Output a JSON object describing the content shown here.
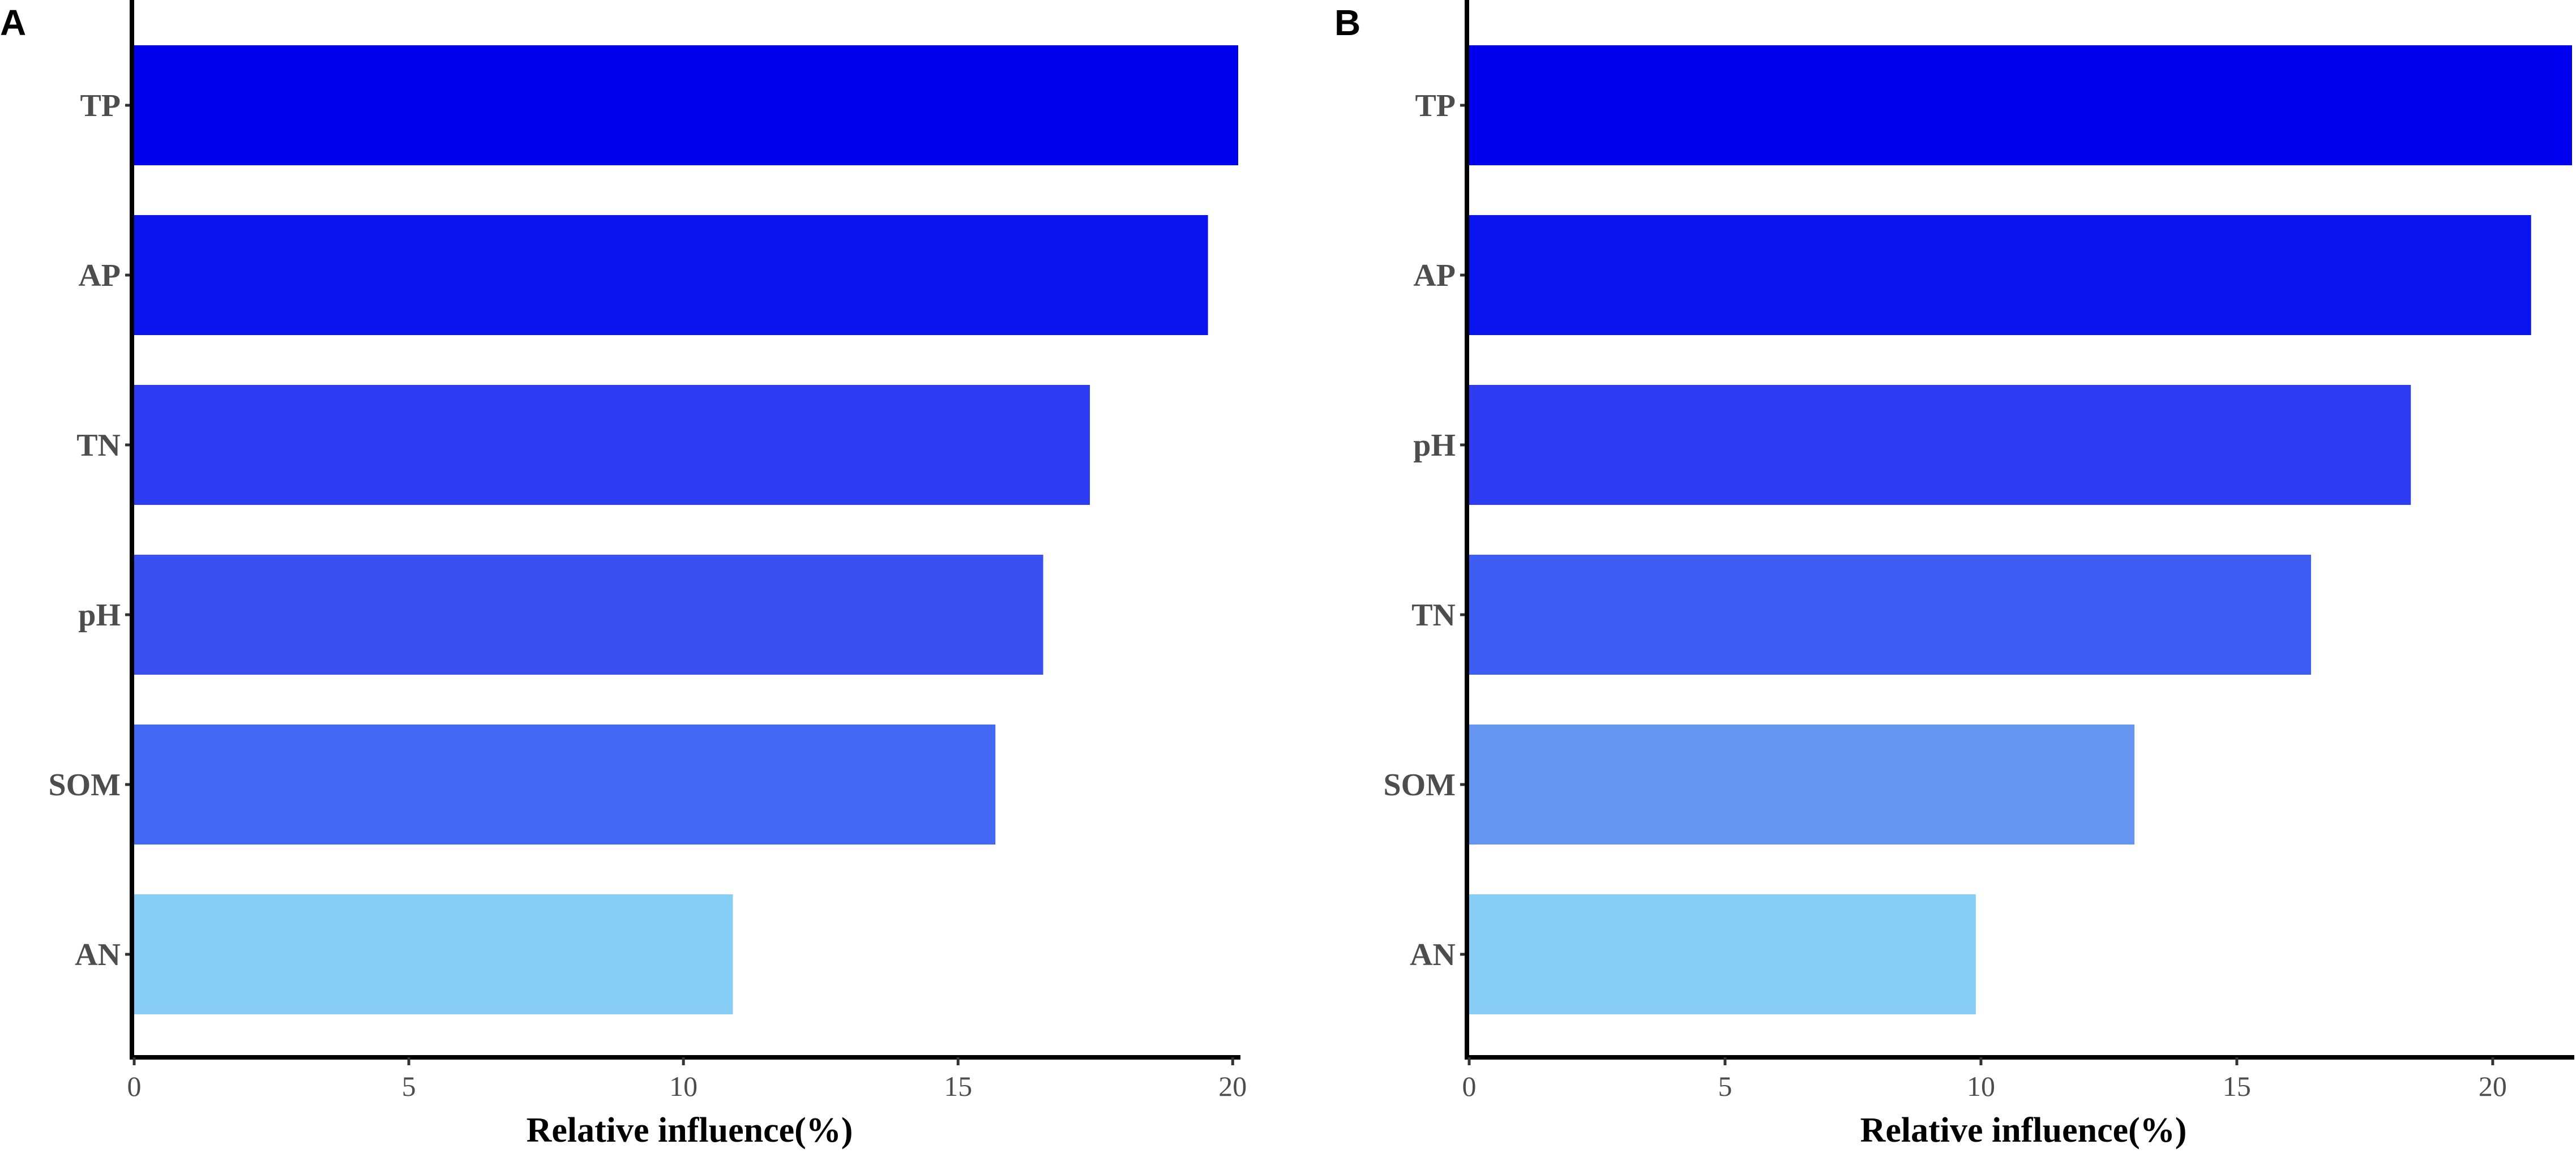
{
  "chart_data": [
    {
      "type": "bar",
      "orientation": "horizontal",
      "panel_label": "A",
      "categories": [
        "TP",
        "AP",
        "TN",
        "pH",
        "SOM",
        "AN"
      ],
      "values": [
        20.1,
        19.55,
        17.4,
        16.55,
        15.68,
        10.9
      ],
      "colors": [
        "#0000EE",
        "#0A14EE",
        "#2D3CF0",
        "#3A50F2",
        "#4268F4",
        "#87CEF7"
      ],
      "xlabel": "Relative influence(%)",
      "xlim": [
        0,
        20.1
      ],
      "xticks": [
        0,
        5,
        10,
        15,
        20
      ],
      "xtick_labels": [
        "0",
        "5",
        "10",
        "15",
        "20"
      ],
      "grid": false
    },
    {
      "type": "bar",
      "orientation": "horizontal",
      "panel_label": "B",
      "categories": [
        "TP",
        "AP",
        "pH",
        "TN",
        "SOM",
        "AN"
      ],
      "values": [
        21.55,
        20.75,
        18.4,
        16.45,
        13.0,
        9.9
      ],
      "colors": [
        "#0000EE",
        "#0A14EE",
        "#2D3CF0",
        "#3D5CF2",
        "#6495F0",
        "#87CEF7"
      ],
      "xlabel": "Relative influence(%)",
      "xlim": [
        0,
        21.55
      ],
      "xticks": [
        0,
        5,
        10,
        15,
        20
      ],
      "xtick_labels": [
        "0",
        "5",
        "10",
        "15",
        "20"
      ],
      "grid": false
    }
  ]
}
